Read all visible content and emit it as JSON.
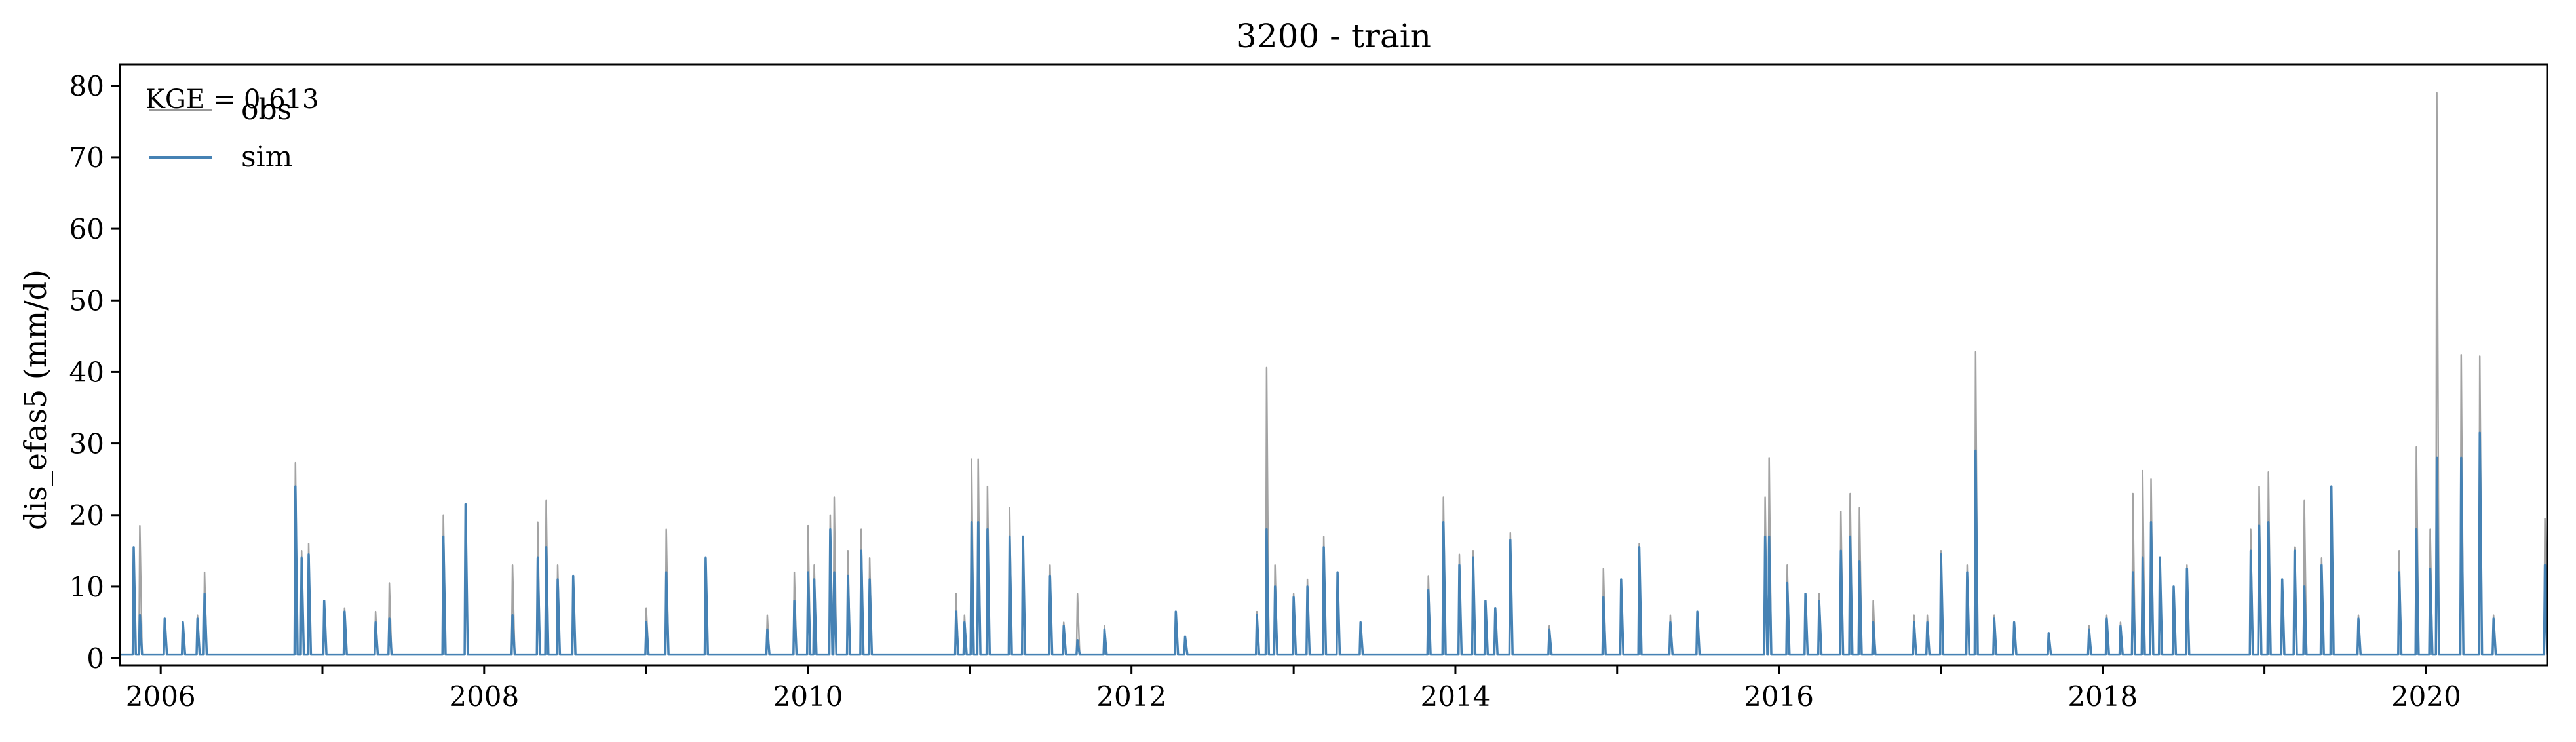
{
  "chart_data": {
    "type": "line",
    "title": "3200 - train",
    "xlabel": "",
    "ylabel": "dis_efas5 (mm/d)",
    "xlim": [
      "2005-10-01",
      "2020-09-30"
    ],
    "ylim": [
      -1,
      83
    ],
    "x_ticks": [
      "2006",
      "2008",
      "2010",
      "2012",
      "2014",
      "2016",
      "2018",
      "2020"
    ],
    "y_ticks": [
      0,
      10,
      20,
      30,
      40,
      50,
      60,
      70,
      80
    ],
    "grid": false,
    "legend_position": "top-left",
    "annotation": "KGE = 0.613",
    "baseline": 0.5,
    "series": [
      {
        "name": "obs",
        "color": "#999999",
        "peaks": [
          [
            "2005-11-01",
            15.0
          ],
          [
            "2005-11-15",
            18.5
          ],
          [
            "2006-01-10",
            5.5
          ],
          [
            "2006-02-20",
            5.0
          ],
          [
            "2006-03-25",
            6.0
          ],
          [
            "2006-04-10",
            12.0
          ],
          [
            "2006-11-01",
            27.3
          ],
          [
            "2006-11-15",
            15.0
          ],
          [
            "2006-12-01",
            16.0
          ],
          [
            "2007-01-05",
            8.0
          ],
          [
            "2007-02-20",
            7.0
          ],
          [
            "2007-05-01",
            6.5
          ],
          [
            "2007-06-01",
            10.5
          ],
          [
            "2007-10-01",
            20.0
          ],
          [
            "2007-11-20",
            21.0
          ],
          [
            "2008-03-05",
            13.0
          ],
          [
            "2008-05-01",
            19.0
          ],
          [
            "2008-05-20",
            22.0
          ],
          [
            "2008-06-15",
            13.0
          ],
          [
            "2008-07-20",
            11.0
          ],
          [
            "2009-01-01",
            7.0
          ],
          [
            "2009-02-15",
            18.0
          ],
          [
            "2009-05-15",
            14.0
          ],
          [
            "2009-10-01",
            6.0
          ],
          [
            "2009-12-01",
            12.0
          ],
          [
            "2010-01-01",
            18.5
          ],
          [
            "2010-01-15",
            13.0
          ],
          [
            "2010-02-20",
            20.0
          ],
          [
            "2010-03-01",
            22.5
          ],
          [
            "2010-04-01",
            15.0
          ],
          [
            "2010-05-01",
            18.0
          ],
          [
            "2010-05-20",
            14.0
          ],
          [
            "2010-12-01",
            9.0
          ],
          [
            "2010-12-20",
            6.0
          ],
          [
            "2011-01-05",
            27.8
          ],
          [
            "2011-01-20",
            27.8
          ],
          [
            "2011-02-10",
            24.0
          ],
          [
            "2011-04-01",
            21.0
          ],
          [
            "2011-05-01",
            17.0
          ],
          [
            "2011-07-01",
            13.0
          ],
          [
            "2011-08-01",
            5.0
          ],
          [
            "2011-09-01",
            9.0
          ],
          [
            "2011-11-01",
            4.5
          ],
          [
            "2012-04-10",
            6.5
          ],
          [
            "2012-05-01",
            3.0
          ],
          [
            "2012-10-10",
            6.5
          ],
          [
            "2012-11-01",
            40.6
          ],
          [
            "2012-11-20",
            13.0
          ],
          [
            "2013-01-01",
            9.0
          ],
          [
            "2013-02-01",
            11.0
          ],
          [
            "2013-03-10",
            17.0
          ],
          [
            "2013-04-10",
            12.0
          ],
          [
            "2013-06-01",
            5.0
          ],
          [
            "2013-11-01",
            11.5
          ],
          [
            "2013-12-05",
            22.5
          ],
          [
            "2014-01-10",
            14.5
          ],
          [
            "2014-02-10",
            15.0
          ],
          [
            "2014-03-10",
            8.0
          ],
          [
            "2014-04-01",
            7.0
          ],
          [
            "2014-05-05",
            17.5
          ],
          [
            "2014-08-01",
            4.5
          ],
          [
            "2014-12-01",
            12.5
          ],
          [
            "2015-01-10",
            11.0
          ],
          [
            "2015-02-20",
            16.0
          ],
          [
            "2015-05-01",
            6.0
          ],
          [
            "2015-07-01",
            6.0
          ],
          [
            "2015-12-01",
            22.5
          ],
          [
            "2015-12-10",
            28.0
          ],
          [
            "2016-01-20",
            13.0
          ],
          [
            "2016-03-01",
            9.0
          ],
          [
            "2016-04-01",
            9.0
          ],
          [
            "2016-05-20",
            20.5
          ],
          [
            "2016-06-10",
            23.0
          ],
          [
            "2016-07-01",
            21.0
          ],
          [
            "2016-08-01",
            8.0
          ],
          [
            "2016-11-01",
            6.0
          ],
          [
            "2016-12-01",
            6.0
          ],
          [
            "2017-01-01",
            15.0
          ],
          [
            "2017-03-01",
            13.0
          ],
          [
            "2017-03-20",
            42.8
          ],
          [
            "2017-05-01",
            6.0
          ],
          [
            "2017-06-15",
            5.0
          ],
          [
            "2017-09-01",
            3.5
          ],
          [
            "2017-12-01",
            4.5
          ],
          [
            "2018-01-10",
            6.0
          ],
          [
            "2018-02-10",
            5.0
          ],
          [
            "2018-03-10",
            23.0
          ],
          [
            "2018-04-01",
            26.2
          ],
          [
            "2018-04-20",
            25.0
          ],
          [
            "2018-05-10",
            14.0
          ],
          [
            "2018-06-10",
            10.0
          ],
          [
            "2018-07-10",
            13.0
          ],
          [
            "2018-12-01",
            18.0
          ],
          [
            "2018-12-20",
            24.0
          ],
          [
            "2019-01-10",
            26.0
          ],
          [
            "2019-02-10",
            11.0
          ],
          [
            "2019-03-10",
            15.5
          ],
          [
            "2019-04-01",
            22.0
          ],
          [
            "2019-05-10",
            14.0
          ],
          [
            "2019-06-01",
            24.0
          ],
          [
            "2019-08-01",
            6.0
          ],
          [
            "2019-11-01",
            15.0
          ],
          [
            "2019-12-10",
            29.5
          ],
          [
            "2020-01-10",
            18.0
          ],
          [
            "2020-01-25",
            79.0
          ],
          [
            "2020-03-20",
            42.4
          ],
          [
            "2020-05-01",
            42.2
          ],
          [
            "2020-06-01",
            6.0
          ],
          [
            "2020-09-25",
            19.5
          ]
        ]
      },
      {
        "name": "sim",
        "color": "#4682b4",
        "peaks": [
          [
            "2005-11-01",
            15.5
          ],
          [
            "2005-11-15",
            6.0
          ],
          [
            "2006-01-10",
            5.5
          ],
          [
            "2006-02-20",
            5.0
          ],
          [
            "2006-03-25",
            5.5
          ],
          [
            "2006-04-10",
            9.0
          ],
          [
            "2006-11-01",
            24.0
          ],
          [
            "2006-11-15",
            14.0
          ],
          [
            "2006-12-01",
            14.5
          ],
          [
            "2007-01-05",
            8.0
          ],
          [
            "2007-02-20",
            6.5
          ],
          [
            "2007-05-01",
            5.0
          ],
          [
            "2007-06-01",
            5.5
          ],
          [
            "2007-10-01",
            17.0
          ],
          [
            "2007-11-20",
            21.5
          ],
          [
            "2008-03-05",
            6.0
          ],
          [
            "2008-05-01",
            14.0
          ],
          [
            "2008-05-20",
            15.5
          ],
          [
            "2008-06-15",
            11.0
          ],
          [
            "2008-07-20",
            11.5
          ],
          [
            "2009-01-01",
            5.0
          ],
          [
            "2009-02-15",
            12.0
          ],
          [
            "2009-05-15",
            14.0
          ],
          [
            "2009-10-01",
            4.0
          ],
          [
            "2009-12-01",
            8.0
          ],
          [
            "2010-01-01",
            12.0
          ],
          [
            "2010-01-15",
            11.0
          ],
          [
            "2010-02-20",
            18.0
          ],
          [
            "2010-03-01",
            12.0
          ],
          [
            "2010-04-01",
            11.5
          ],
          [
            "2010-05-01",
            15.0
          ],
          [
            "2010-05-20",
            11.0
          ],
          [
            "2010-12-01",
            6.5
          ],
          [
            "2010-12-20",
            5.0
          ],
          [
            "2011-01-05",
            19.0
          ],
          [
            "2011-01-20",
            19.0
          ],
          [
            "2011-02-10",
            18.0
          ],
          [
            "2011-04-01",
            17.0
          ],
          [
            "2011-05-01",
            17.0
          ],
          [
            "2011-07-01",
            11.5
          ],
          [
            "2011-08-01",
            4.5
          ],
          [
            "2011-09-01",
            2.5
          ],
          [
            "2011-11-01",
            4.0
          ],
          [
            "2012-04-10",
            6.5
          ],
          [
            "2012-05-01",
            3.0
          ],
          [
            "2012-10-10",
            6.0
          ],
          [
            "2012-11-01",
            18.0
          ],
          [
            "2012-11-20",
            10.0
          ],
          [
            "2013-01-01",
            8.5
          ],
          [
            "2013-02-01",
            10.0
          ],
          [
            "2013-03-10",
            15.5
          ],
          [
            "2013-04-10",
            12.0
          ],
          [
            "2013-06-01",
            5.0
          ],
          [
            "2013-11-01",
            9.5
          ],
          [
            "2013-12-05",
            19.0
          ],
          [
            "2014-01-10",
            13.0
          ],
          [
            "2014-02-10",
            14.0
          ],
          [
            "2014-03-10",
            8.0
          ],
          [
            "2014-04-01",
            7.0
          ],
          [
            "2014-05-05",
            16.5
          ],
          [
            "2014-08-01",
            4.0
          ],
          [
            "2014-12-01",
            8.5
          ],
          [
            "2015-01-10",
            11.0
          ],
          [
            "2015-02-20",
            15.5
          ],
          [
            "2015-05-01",
            5.0
          ],
          [
            "2015-07-01",
            6.5
          ],
          [
            "2015-12-01",
            17.0
          ],
          [
            "2015-12-10",
            17.0
          ],
          [
            "2016-01-20",
            10.5
          ],
          [
            "2016-03-01",
            9.0
          ],
          [
            "2016-04-01",
            8.0
          ],
          [
            "2016-05-20",
            15.0
          ],
          [
            "2016-06-10",
            17.0
          ],
          [
            "2016-07-01",
            13.5
          ],
          [
            "2016-08-01",
            5.0
          ],
          [
            "2016-11-01",
            5.0
          ],
          [
            "2016-12-01",
            5.0
          ],
          [
            "2017-01-01",
            14.5
          ],
          [
            "2017-03-01",
            12.0
          ],
          [
            "2017-03-20",
            29.0
          ],
          [
            "2017-05-01",
            5.5
          ],
          [
            "2017-06-15",
            5.0
          ],
          [
            "2017-09-01",
            3.5
          ],
          [
            "2017-12-01",
            4.0
          ],
          [
            "2018-01-10",
            5.5
          ],
          [
            "2018-02-10",
            4.5
          ],
          [
            "2018-03-10",
            12.0
          ],
          [
            "2018-04-01",
            14.0
          ],
          [
            "2018-04-20",
            19.0
          ],
          [
            "2018-05-10",
            14.0
          ],
          [
            "2018-06-10",
            10.0
          ],
          [
            "2018-07-10",
            12.5
          ],
          [
            "2018-12-01",
            15.0
          ],
          [
            "2018-12-20",
            18.5
          ],
          [
            "2019-01-10",
            19.0
          ],
          [
            "2019-02-10",
            11.0
          ],
          [
            "2019-03-10",
            15.0
          ],
          [
            "2019-04-01",
            10.0
          ],
          [
            "2019-05-10",
            13.0
          ],
          [
            "2019-06-01",
            24.0
          ],
          [
            "2019-08-01",
            5.5
          ],
          [
            "2019-11-01",
            12.0
          ],
          [
            "2019-12-10",
            18.0
          ],
          [
            "2020-01-10",
            12.5
          ],
          [
            "2020-01-25",
            28.0
          ],
          [
            "2020-03-20",
            28.0
          ],
          [
            "2020-05-01",
            31.5
          ],
          [
            "2020-06-01",
            5.5
          ],
          [
            "2020-09-25",
            13.0
          ]
        ]
      }
    ]
  }
}
